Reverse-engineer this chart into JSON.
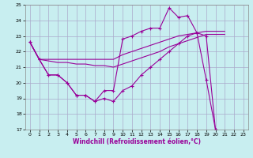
{
  "bg_color": "#c8eef0",
  "line_color": "#990099",
  "grid_color": "#aaaacc",
  "xlabel": "Windchill (Refroidissement éolien,°C)",
  "xmin": -0.5,
  "xmax": 23.5,
  "ymin": 17,
  "ymax": 25,
  "xticks": [
    0,
    1,
    2,
    3,
    4,
    5,
    6,
    7,
    8,
    9,
    10,
    11,
    12,
    13,
    14,
    15,
    16,
    17,
    18,
    19,
    20,
    21,
    22,
    23
  ],
  "yticks": [
    17,
    18,
    19,
    20,
    21,
    22,
    23,
    24,
    25
  ],
  "l1x": [
    0,
    1,
    2,
    3,
    4,
    5,
    6,
    7,
    8,
    9,
    10,
    11,
    12,
    13,
    14,
    15,
    16,
    17,
    18,
    19,
    20,
    21
  ],
  "l1y": [
    22.6,
    21.5,
    20.5,
    20.5,
    20.0,
    19.2,
    19.2,
    18.8,
    19.5,
    19.5,
    22.8,
    23.0,
    23.3,
    23.5,
    23.5,
    24.8,
    24.2,
    24.3,
    23.2,
    20.2,
    17.0,
    16.8
  ],
  "l2x": [
    0,
    1,
    2,
    3,
    4,
    5,
    6,
    7,
    8,
    9,
    10,
    11,
    12,
    13,
    14,
    15,
    16,
    17,
    18,
    19,
    20,
    21
  ],
  "l2y": [
    22.6,
    21.5,
    21.4,
    21.3,
    21.3,
    21.2,
    21.2,
    21.1,
    21.1,
    21.0,
    21.2,
    21.4,
    21.6,
    21.8,
    22.0,
    22.3,
    22.5,
    22.7,
    22.9,
    23.1,
    23.1,
    23.1
  ],
  "l3x": [
    0,
    1,
    2,
    3,
    4,
    5,
    6,
    7,
    8,
    9,
    10,
    11,
    12,
    13,
    14,
    15,
    16,
    17,
    18,
    19,
    20,
    21
  ],
  "l3y": [
    22.6,
    21.5,
    21.5,
    21.5,
    21.5,
    21.5,
    21.5,
    21.5,
    21.5,
    21.5,
    21.8,
    22.0,
    22.2,
    22.4,
    22.6,
    22.8,
    23.0,
    23.1,
    23.2,
    23.3,
    23.3,
    23.3
  ],
  "l4x": [
    0,
    1,
    2,
    3,
    4,
    5,
    6,
    7,
    8,
    9,
    10,
    11,
    12,
    13,
    14,
    15,
    16,
    17,
    18,
    19,
    20,
    21
  ],
  "l4y": [
    22.6,
    21.5,
    20.5,
    20.5,
    20.0,
    19.2,
    19.2,
    18.8,
    19.0,
    18.8,
    19.5,
    19.8,
    20.5,
    21.0,
    21.5,
    22.0,
    22.5,
    23.0,
    23.2,
    23.0,
    17.0,
    16.8
  ]
}
